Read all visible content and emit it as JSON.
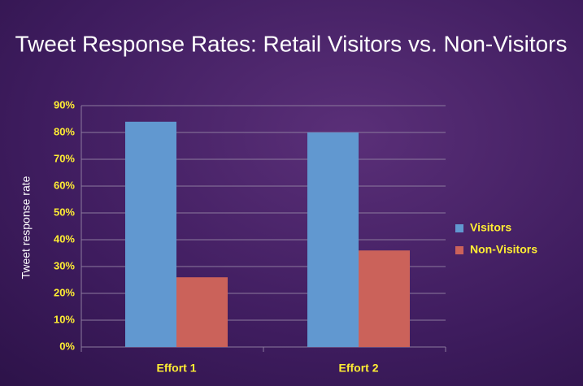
{
  "chart_data": {
    "type": "bar",
    "title": "Tweet Response Rates: Retail Visitors vs. Non-Visitors",
    "y_label": "Tweet response rate",
    "categories": [
      "Effort 1",
      "Effort 2"
    ],
    "series": [
      {
        "name": "Visitors",
        "color": "#6198d0",
        "values": [
          84,
          80
        ]
      },
      {
        "name": "Non-Visitors",
        "color": "#cb625a",
        "values": [
          26,
          36
        ]
      }
    ],
    "ylim": [
      0,
      90
    ],
    "yticks": [
      {
        "value": 0,
        "label": "0%"
      },
      {
        "value": 10,
        "label": "10%"
      },
      {
        "value": 20,
        "label": "20%"
      },
      {
        "value": 30,
        "label": "30%"
      },
      {
        "value": 40,
        "label": "40%"
      },
      {
        "value": 50,
        "label": "50%"
      },
      {
        "value": 60,
        "label": "60%"
      },
      {
        "value": 70,
        "label": "70%"
      },
      {
        "value": 80,
        "label": "80%"
      },
      {
        "value": 90,
        "label": "90%"
      }
    ],
    "grid": true,
    "legend": "right"
  }
}
